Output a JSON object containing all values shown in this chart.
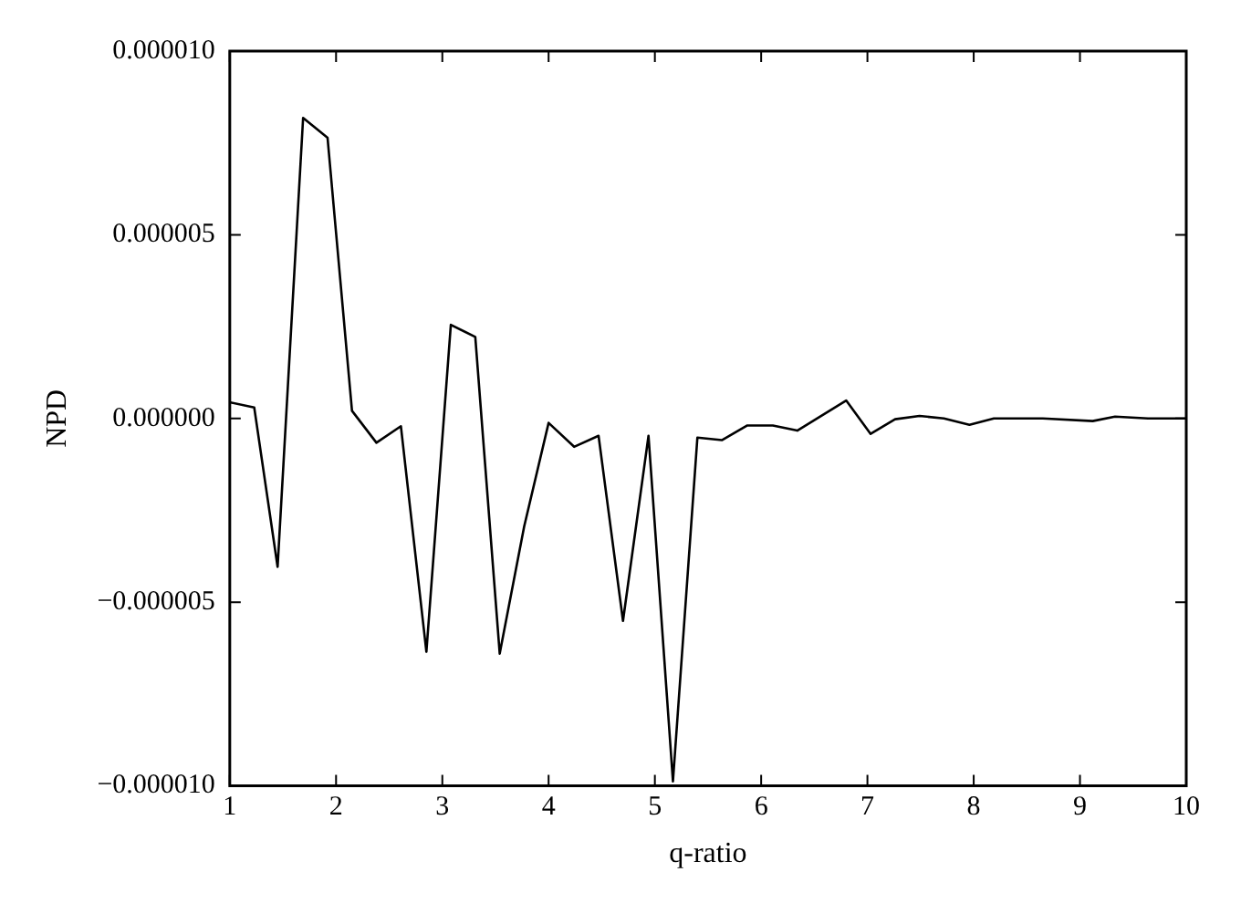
{
  "chart_data": {
    "type": "line",
    "xlabel": "q-ratio",
    "ylabel": "NPD",
    "x": [
      1,
      1.23,
      1.45,
      1.69,
      1.92,
      2.15,
      2.38,
      2.61,
      2.85,
      3.08,
      3.31,
      3.54,
      3.77,
      4.0,
      4.24,
      4.47,
      4.7,
      4.94,
      5.17,
      5.4,
      5.63,
      5.87,
      6.11,
      6.34,
      6.8,
      7.03,
      7.26,
      7.49,
      7.72,
      7.96,
      8.19,
      8.65,
      9.12,
      9.33,
      9.64,
      10
    ],
    "series": [
      {
        "color": "#000000",
        "values": [
          4.4e-07,
          3e-07,
          -4.04e-06,
          8.18e-06,
          7.64e-06,
          2.1e-07,
          -6.6e-07,
          -2.1e-07,
          -6.35e-06,
          2.55e-06,
          2.22e-06,
          -6.4e-06,
          -2.94e-06,
          -1.2e-07,
          -7.7e-07,
          -4.7e-07,
          -5.51e-06,
          -4.7e-07,
          -9.88e-06,
          -5.2e-07,
          -5.9e-07,
          -1.9e-07,
          -1.9e-07,
          -3.3e-07,
          4.9e-07,
          -4.2e-07,
          -2e-08,
          7e-08,
          0,
          -1.7e-07,
          0,
          0,
          -7e-08,
          5e-08,
          0,
          0
        ]
      }
    ],
    "xlim": [
      1,
      10
    ],
    "xticks": [
      1,
      2,
      3,
      4,
      5,
      6,
      7,
      8,
      9,
      10
    ],
    "ylim": [
      -1e-05,
      1e-05
    ],
    "yticks": [
      {
        "value": -1e-05,
        "label": "−0.000010"
      },
      {
        "value": -5e-06,
        "label": "−0.000005"
      },
      {
        "value": 0,
        "label": "0.000000"
      },
      {
        "value": 5e-06,
        "label": "0.000005"
      },
      {
        "value": 1e-05,
        "label": "0.000010"
      }
    ],
    "grid": false,
    "legend": false,
    "marker": "none",
    "line_style": "solid"
  }
}
